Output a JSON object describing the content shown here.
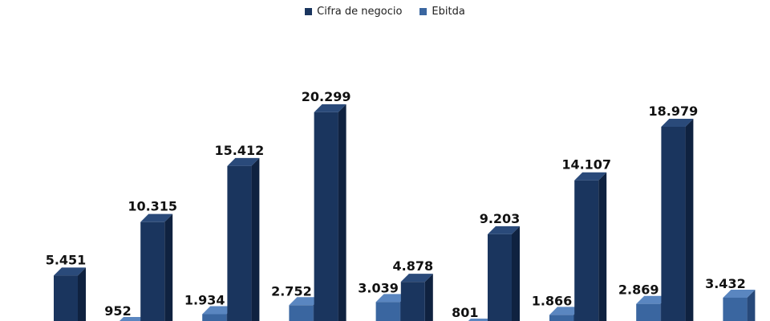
{
  "colors": {
    "cifra_front": "#1a355e",
    "cifra_side": "#0f2240",
    "cifra_top": "#2a4a7a",
    "ebitda_front": "#3a66a0",
    "ebitda_side": "#27497a",
    "ebitda_top": "#5a86c0"
  },
  "legend": {
    "items": [
      {
        "label": "Cifra de negocio",
        "color": "#1a355e"
      },
      {
        "label": "Ebitda",
        "color": "#3a66a0"
      }
    ]
  },
  "chart_data": {
    "type": "bar",
    "categories": [
      "",
      "",
      "",
      "",
      "",
      "",
      "",
      ""
    ],
    "series": [
      {
        "name": "Cifra de negocio",
        "values": [
          5451,
          10315,
          15412,
          20299,
          4878,
          9203,
          14107,
          18979
        ],
        "labels": [
          "5.451",
          "10.315",
          "15.412",
          "20.299",
          "4.878",
          "9.203",
          "14.107",
          "18.979"
        ]
      },
      {
        "name": "Ebitda",
        "values": [
          952,
          1934,
          2752,
          3039,
          801,
          1866,
          2869,
          3432
        ],
        "labels": [
          "952",
          "1.934",
          "2.752",
          "3.039",
          "801",
          "1.866",
          "2.869",
          "3.432"
        ]
      }
    ],
    "legend_position": "top-center",
    "grid": false
  }
}
